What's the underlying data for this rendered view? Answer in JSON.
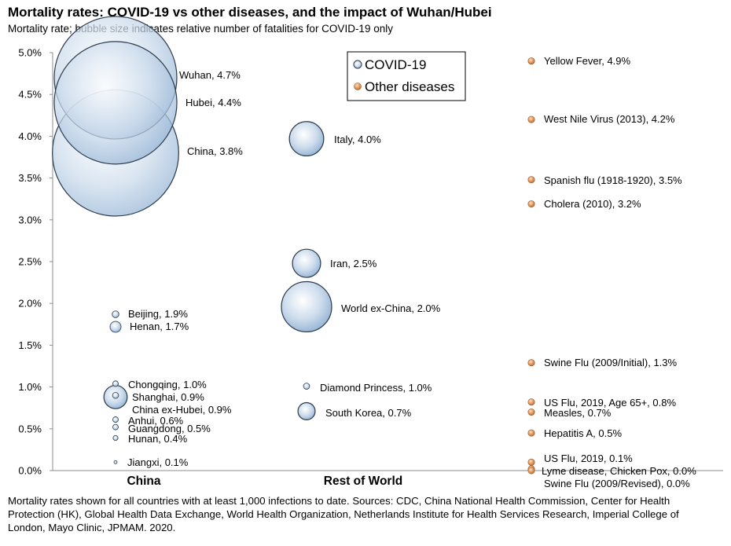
{
  "title": "Mortality rates: COVID-19 vs other diseases, and the impact of Wuhan/Hubei",
  "subtitle": "Mortality rate; bubble size indicates relative number of fatalities  for COVID-19 only",
  "footnote": "Mortality rates shown for all countries with at least 1,000 infections to date.  Sources: CDC, China National Health Commission, Center for Health Protection (HK), Global Health Data Exchange, World Health Organization, Netherlands Institute for Health Services Research, Imperial College of London, Mayo Clinic, JPMAM. 2020.",
  "chart_data": {
    "type": "scatter",
    "categories": [
      "China",
      "Rest of World",
      ""
    ],
    "ylim": [
      0,
      5
    ],
    "yticks": [
      "0.0%",
      "0.5%",
      "1.0%",
      "1.5%",
      "2.0%",
      "2.5%",
      "3.0%",
      "3.5%",
      "4.0%",
      "4.5%",
      "5.0%"
    ],
    "legend": {
      "position": "top-center",
      "entries": [
        "COVID-19",
        "Other diseases"
      ]
    },
    "colors": {
      "covid": "#a9c4e0",
      "covid_stroke": "#2b3a4a",
      "other": "#d98a4e"
    },
    "series": [
      {
        "name": "COVID-19",
        "points": [
          {
            "label": "Wuhan, 4.7%",
            "category": 0,
            "y": 4.7,
            "size": 1.0
          },
          {
            "label": "Hubei, 4.4%",
            "category": 0,
            "y": 4.4,
            "size": 1.0
          },
          {
            "label": "China, 3.8%",
            "category": 0,
            "y": 3.8,
            "size": 1.03
          },
          {
            "label": "Beijing, 1.9%",
            "category": 0,
            "y": 1.87,
            "size": 0.055
          },
          {
            "label": "Henan, 1.7%",
            "category": 0,
            "y": 1.72,
            "size": 0.09
          },
          {
            "label": "Chongqing, 1.0%",
            "category": 0,
            "y": 1.04,
            "size": 0.045
          },
          {
            "label": "Shanghai, 0.9%",
            "category": 0,
            "y": 0.9,
            "size": 0.05
          },
          {
            "label": "China ex-Hubei, 0.9%",
            "category": 0,
            "y": 0.88,
            "size": 0.19
          },
          {
            "label": "Anhui, 0.6%",
            "category": 0,
            "y": 0.61,
            "size": 0.045
          },
          {
            "label": "Guangdong, 0.5%",
            "category": 0,
            "y": 0.52,
            "size": 0.045
          },
          {
            "label": "Hunan, 0.4%",
            "category": 0,
            "y": 0.39,
            "size": 0.04
          },
          {
            "label": "Jiangxi, 0.1%",
            "category": 0,
            "y": 0.1,
            "size": 0.015
          },
          {
            "label": "Italy, 4.0%",
            "category": 1,
            "y": 3.97,
            "size": 0.28
          },
          {
            "label": "Iran, 2.5%",
            "category": 1,
            "y": 2.48,
            "size": 0.23
          },
          {
            "label": "World ex-China, 2.0%",
            "category": 1,
            "y": 1.96,
            "size": 0.41
          },
          {
            "label": "Diamond Princess, 1.0%",
            "category": 1,
            "y": 1.01,
            "size": 0.05
          },
          {
            "label": "South Korea, 0.7%",
            "category": 1,
            "y": 0.71,
            "size": 0.14
          }
        ]
      },
      {
        "name": "Other diseases",
        "points": [
          {
            "label": "Yellow Fever, 4.9%",
            "category": 2,
            "y": 4.9
          },
          {
            "label": "West Nile Virus (2013), 4.2%",
            "category": 2,
            "y": 4.2
          },
          {
            "label": "Spanish flu (1918-1920), 3.5%",
            "category": 2,
            "y": 3.48
          },
          {
            "label": "Cholera (2010), 3.2%",
            "category": 2,
            "y": 3.19
          },
          {
            "label": "Swine Flu (2009/Initial), 1.3%",
            "category": 2,
            "y": 1.29
          },
          {
            "label": "US Flu, 2019, Age 65+, 0.8%",
            "category": 2,
            "y": 0.82
          },
          {
            "label": "Measles, 0.7%",
            "category": 2,
            "y": 0.7
          },
          {
            "label": "Hepatitis A, 0.5%",
            "category": 2,
            "y": 0.45
          },
          {
            "label": "US Flu, 2019, 0.1%",
            "category": 2,
            "y": 0.1
          },
          {
            "label": "Lyme disease, Chicken Pox, 0.0%",
            "category": 2,
            "y": 0.02
          },
          {
            "label": "Swine Flu (2009/Revised), 0.0%",
            "category": 2,
            "y": 0.0
          }
        ]
      }
    ]
  }
}
